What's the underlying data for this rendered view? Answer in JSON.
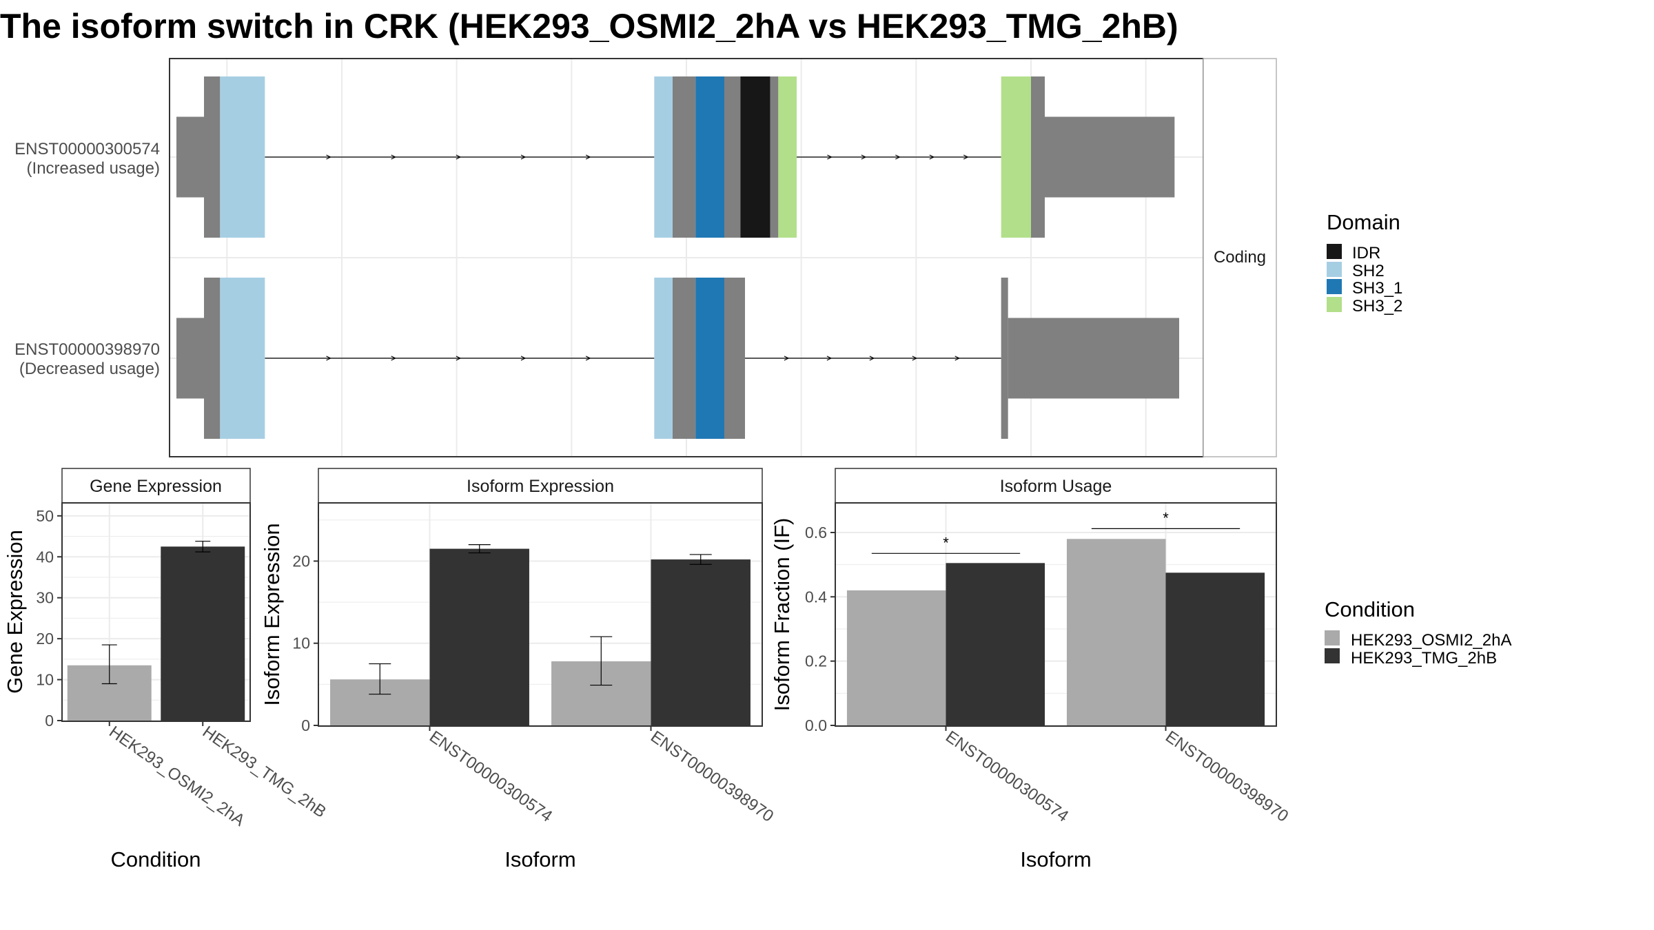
{
  "title": "The isoform switch in CRK (HEK293_OSMI2_2hA vs HEK293_TMG_2hB)",
  "colors": {
    "exon": "#808080",
    "IDR": "#171717",
    "SH2": "#a6cee3",
    "SH3_1": "#1f78b4",
    "SH3_2": "#b2df8a",
    "condA": "#aaaaaa",
    "condB": "#333333",
    "grid": "#ebebeb",
    "panel_border": "#333333"
  },
  "chart_data": [
    {
      "type": "gene-structure",
      "facet_label": "Coding",
      "transcripts": [
        {
          "id": "ENST00000300574",
          "status": "(Increased usage)",
          "segments": [
            {
              "start": 0.6,
              "end": 3.0,
              "kind": "utr"
            },
            {
              "start": 3.0,
              "end": 4.4,
              "kind": "cds"
            },
            {
              "start": 4.4,
              "end": 8.3,
              "kind": "SH2"
            },
            {
              "start": 42.2,
              "end": 43.8,
              "kind": "SH2"
            },
            {
              "start": 43.8,
              "end": 45.8,
              "kind": "cds"
            },
            {
              "start": 45.8,
              "end": 48.3,
              "kind": "SH3_1"
            },
            {
              "start": 48.3,
              "end": 49.7,
              "kind": "cds"
            },
            {
              "start": 49.7,
              "end": 52.3,
              "kind": "IDR"
            },
            {
              "start": 52.3,
              "end": 53.0,
              "kind": "cds"
            },
            {
              "start": 53.0,
              "end": 54.6,
              "kind": "SH3_2"
            },
            {
              "start": 72.4,
              "end": 75.0,
              "kind": "SH3_2"
            },
            {
              "start": 75.0,
              "end": 76.2,
              "kind": "cds"
            },
            {
              "start": 76.2,
              "end": 87.5,
              "kind": "utr"
            }
          ],
          "introns": [
            [
              8.3,
              42.2
            ],
            [
              54.6,
              72.4
            ]
          ]
        },
        {
          "id": "ENST00000398970",
          "status": "(Decreased usage)",
          "segments": [
            {
              "start": 0.6,
              "end": 3.0,
              "kind": "utr"
            },
            {
              "start": 3.0,
              "end": 4.4,
              "kind": "cds"
            },
            {
              "start": 4.4,
              "end": 8.3,
              "kind": "SH2"
            },
            {
              "start": 42.2,
              "end": 43.8,
              "kind": "SH2"
            },
            {
              "start": 43.8,
              "end": 45.8,
              "kind": "cds"
            },
            {
              "start": 45.8,
              "end": 48.3,
              "kind": "SH3_1"
            },
            {
              "start": 48.3,
              "end": 50.1,
              "kind": "cds"
            },
            {
              "start": 72.4,
              "end": 73.0,
              "kind": "cds"
            },
            {
              "start": 73.0,
              "end": 87.9,
              "kind": "utr"
            }
          ],
          "introns": [
            [
              8.3,
              42.2
            ],
            [
              50.1,
              72.4
            ]
          ]
        }
      ],
      "domain_legend": {
        "title": "Domain",
        "items": [
          "IDR",
          "SH2",
          "SH3_1",
          "SH3_2"
        ]
      }
    },
    {
      "type": "bar",
      "facet_label": "Gene Expression",
      "xlabel": "Condition",
      "ylabel": "Gene Expression",
      "ylim": [
        0,
        53
      ],
      "yticks": [
        0,
        10,
        20,
        30,
        40,
        50
      ],
      "categories": [
        "HEK293_OSMI2_2hA",
        "HEK293_TMG_2hB"
      ],
      "values": [
        13.5,
        42.5
      ],
      "errors": [
        [
          9.0,
          18.5
        ],
        [
          41.2,
          43.8
        ]
      ]
    },
    {
      "type": "bar",
      "facet_label": "Isoform Expression",
      "xlabel": "Isoform",
      "ylabel": "Isoform Expression",
      "ylim": [
        0,
        27
      ],
      "yticks": [
        0,
        10,
        20
      ],
      "categories": [
        "ENST00000300574",
        "ENST00000398970"
      ],
      "series": [
        {
          "name": "HEK293_OSMI2_2hA",
          "values": [
            5.6,
            7.8
          ],
          "errors": [
            [
              3.8,
              7.5
            ],
            [
              4.9,
              10.8
            ]
          ]
        },
        {
          "name": "HEK293_TMG_2hB",
          "values": [
            21.5,
            20.2
          ],
          "errors": [
            [
              21.0,
              22.0
            ],
            [
              19.6,
              20.8
            ]
          ]
        }
      ]
    },
    {
      "type": "bar",
      "facet_label": "Isoform Usage",
      "xlabel": "Isoform",
      "ylabel": "Isoform Fraction (IF)",
      "ylim": [
        0,
        0.69
      ],
      "yticks": [
        "0.0",
        "0.2",
        "0.4",
        "0.6"
      ],
      "categories": [
        "ENST00000300574",
        "ENST00000398970"
      ],
      "series": [
        {
          "name": "HEK293_OSMI2_2hA",
          "values": [
            0.42,
            0.58
          ]
        },
        {
          "name": "HEK293_TMG_2hB",
          "values": [
            0.505,
            0.475
          ]
        }
      ],
      "significance": [
        {
          "category": "ENST00000300574",
          "y": 0.535,
          "label": "*"
        },
        {
          "category": "ENST00000398970",
          "y": 0.612,
          "label": "*"
        }
      ]
    }
  ],
  "condition_legend": {
    "title": "Condition",
    "items": [
      "HEK293_OSMI2_2hA",
      "HEK293_TMG_2hB"
    ]
  }
}
